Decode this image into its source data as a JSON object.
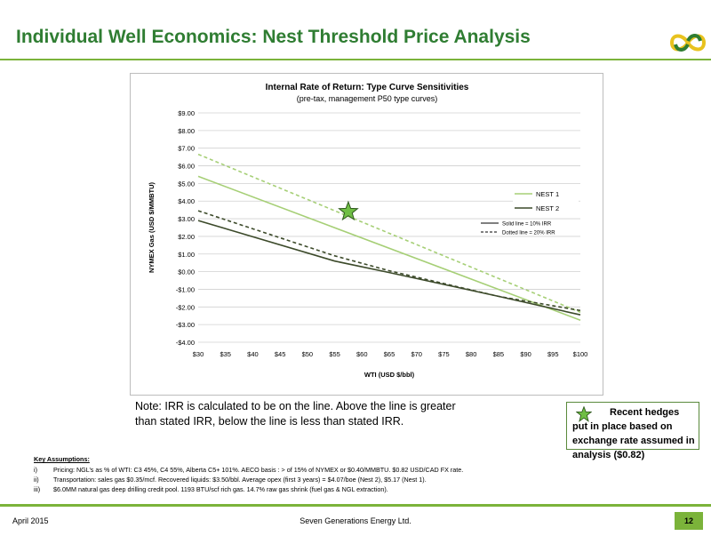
{
  "slide": {
    "title": "Individual Well Economics: Nest Threshold Price Analysis"
  },
  "colors": {
    "brand_green": "#2f7d32",
    "accent_green": "#7bb33a",
    "nest1": "#a6cf76",
    "nest2": "#3c4a2a",
    "star_fill": "#6fbe44",
    "logo_yellow": "#e8c21e"
  },
  "icons": {
    "logo": "seven-generations-logo-icon",
    "star": "star-icon"
  },
  "chart_data": {
    "type": "line",
    "title": "Internal Rate of Return: Type Curve Sensitivities",
    "subtitle": "(pre-tax, management P50 type curves)",
    "xlabel": "WTI (USD $/bbl)",
    "ylabel": "NYMEX Gas (USD $/MMBTU)",
    "x_ticks": [
      30,
      35,
      40,
      45,
      50,
      55,
      60,
      65,
      70,
      75,
      80,
      85,
      90,
      95,
      100
    ],
    "x_tick_labels": [
      "$30",
      "$35",
      "$40",
      "$45",
      "$50",
      "$55",
      "$60",
      "$65",
      "$70",
      "$75",
      "$80",
      "$85",
      "$90",
      "$95",
      "$100"
    ],
    "y_ticks": [
      9,
      8,
      7,
      6,
      5,
      4,
      3,
      2,
      1,
      0,
      -1,
      -2,
      -3,
      -4
    ],
    "y_tick_labels": [
      "$9.00",
      "$8.00",
      "$7.00",
      "$6.00",
      "$5.00",
      "$4.00",
      "$3.00",
      "$2.00",
      "$1.00",
      "$0.00",
      "-$1.00",
      "-$2.00",
      "-$3.00",
      "-$4.00"
    ],
    "xlim": [
      30,
      100
    ],
    "ylim": [
      -4,
      9
    ],
    "grid": "horizontal",
    "legend_position": "right",
    "series": [
      {
        "name": "NEST 1",
        "irr": "10%",
        "style": "solid",
        "color": "#a6cf76",
        "x": [
          30,
          100
        ],
        "values": [
          5.4,
          -2.75
        ]
      },
      {
        "name": "NEST 1",
        "irr": "20%",
        "style": "dashed",
        "color": "#a6cf76",
        "x": [
          30,
          100
        ],
        "values": [
          6.65,
          -2.3
        ]
      },
      {
        "name": "NEST 2",
        "irr": "10%",
        "style": "solid",
        "color": "#3c4a2a",
        "x": [
          30,
          55,
          65,
          85,
          100
        ],
        "values": [
          2.9,
          0.6,
          -0.05,
          -1.4,
          -2.45
        ]
      },
      {
        "name": "NEST 2",
        "irr": "20%",
        "style": "dashed",
        "color": "#3c4a2a",
        "x": [
          30,
          55,
          65,
          85,
          100
        ],
        "values": [
          3.45,
          0.9,
          0.05,
          -1.4,
          -2.2
        ]
      }
    ],
    "legend": [
      {
        "label": "NEST 1",
        "color": "#a6cf76",
        "style": "solid"
      },
      {
        "label": "NEST 2",
        "color": "#3c4a2a",
        "style": "solid"
      },
      {
        "label": "Solid line = 10% IRR",
        "color": "#000000",
        "style": "solid"
      },
      {
        "label": "Dotted line = 20% IRR",
        "color": "#000000",
        "style": "dashed"
      }
    ],
    "marker": {
      "shape": "star",
      "x": 57.5,
      "y": 3.4
    }
  },
  "note": "Note: IRR is calculated to be on the line.  Above the line is greater than stated IRR, below the line is less than stated IRR.",
  "hedge_box": {
    "text": "Recent hedges put in place based on exchange rate assumed in analysis ($0.82)"
  },
  "assumptions": {
    "title": "Key Assumptions:",
    "items": [
      {
        "num": "i)",
        "text": "Pricing: NGL’s as % of WTI: C3 45%, C4 55%, Alberta C5+ 101%.  AECO basis : > of 15% of NYMEX or $0.40/MMBTU. $0.82 USD/CAD FX rate."
      },
      {
        "num": "ii)",
        "text": "Transportation: sales gas $0.35/mcf.  Recovered liquids: $3.50/bbl.  Average opex (first 3 years) = $4.07/boe (Nest 2), $5.17 (Nest 1)."
      },
      {
        "num": "iii)",
        "text": "$6.0MM natural gas deep drilling credit pool.  1193 BTU/scf rich gas.  14.7% raw gas shrink (fuel gas & NGL extraction)."
      }
    ]
  },
  "footer": {
    "date": "April 2015",
    "company": "Seven Generations Energy Ltd.",
    "page": "12"
  }
}
